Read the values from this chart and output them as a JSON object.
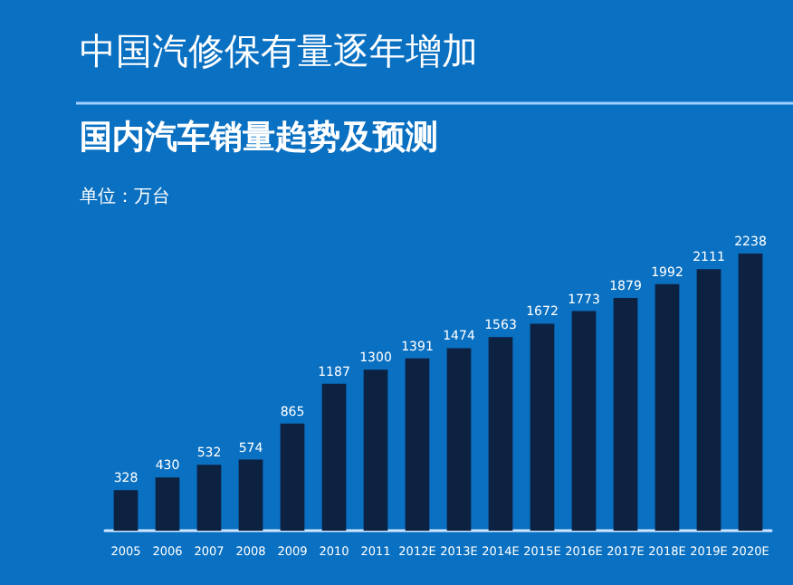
{
  "chart_data": {
    "type": "bar",
    "title": "中国汽修保有量逐年增加",
    "subtitle": "国内汽车销量趋势及预测",
    "annotations": [
      "单位：万台"
    ],
    "categories": [
      "2005",
      "2006",
      "2007",
      "2008",
      "2009",
      "2010",
      "2011",
      "2012E",
      "2013E",
      "2014E",
      "2015E",
      "2016E",
      "2017E",
      "2018E",
      "2019E",
      "2020E"
    ],
    "values": [
      328,
      430,
      532,
      574,
      865,
      1187,
      1300,
      1391,
      1474,
      1563,
      1672,
      1773,
      1879,
      1992,
      2111,
      2238
    ],
    "color": "#0d2140",
    "data_labels": true
  }
}
